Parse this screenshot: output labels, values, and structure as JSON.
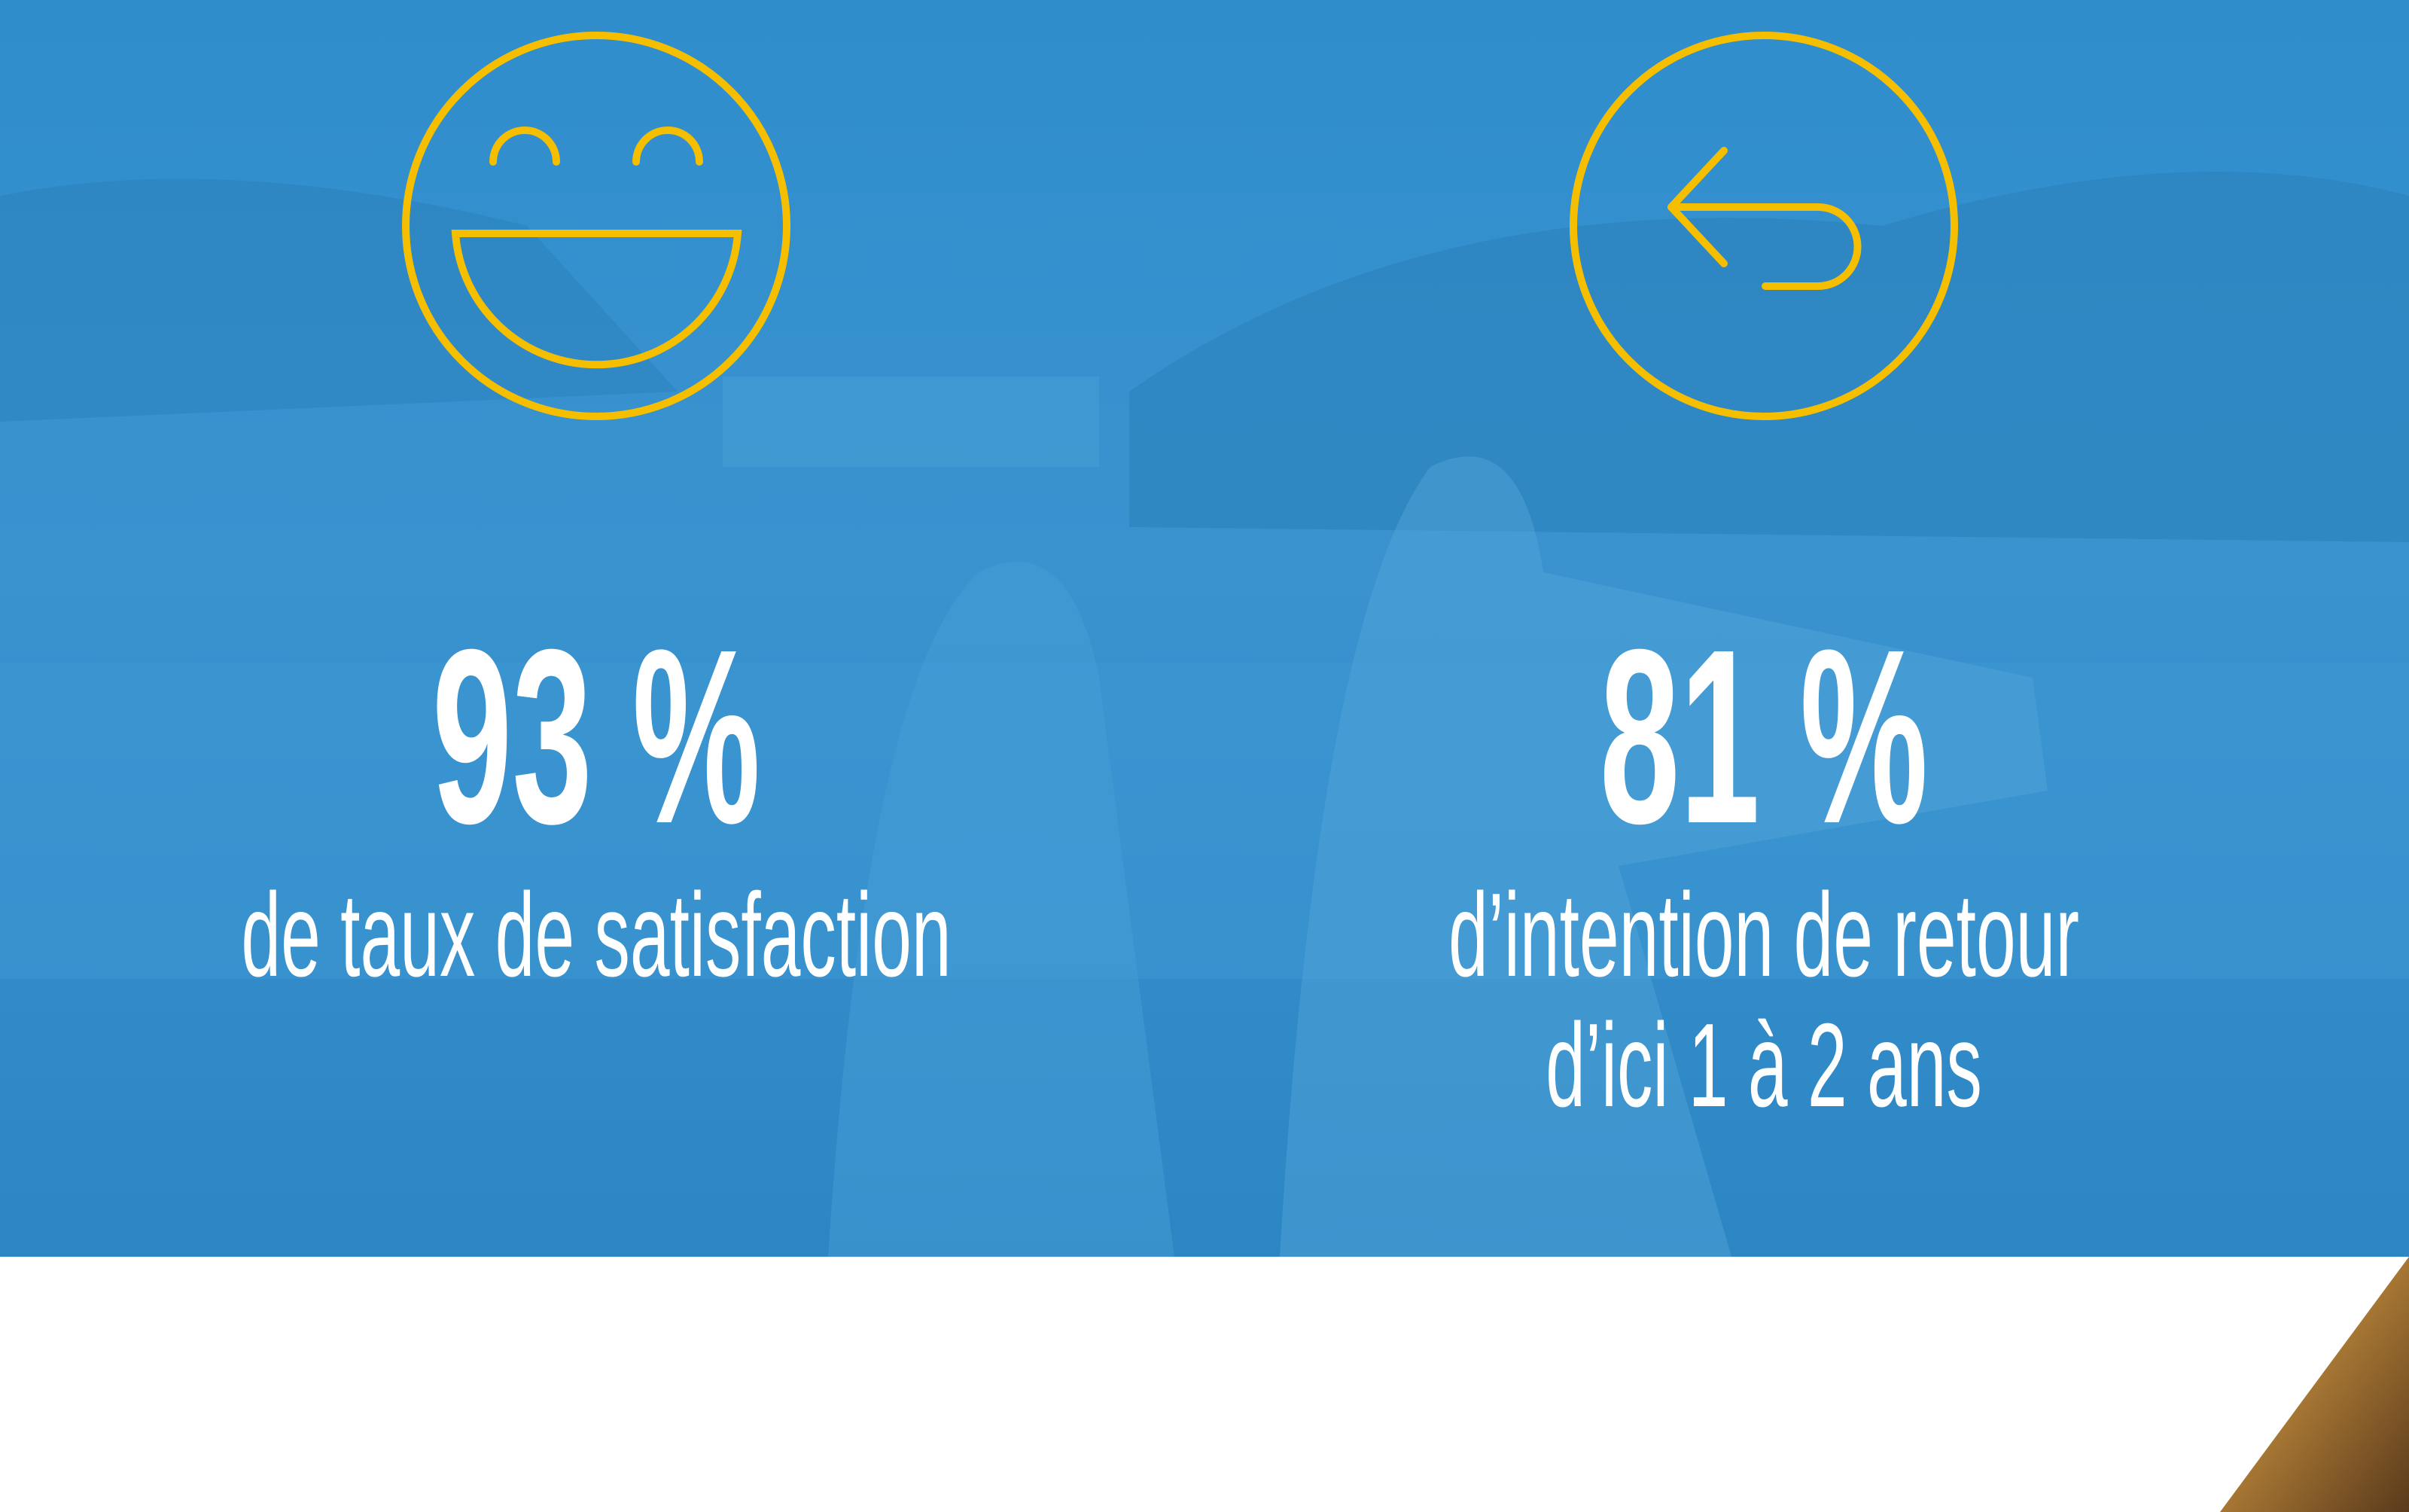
{
  "stats": [
    {
      "value": "93 %",
      "label": [
        "de taux de satisfaction"
      ]
    },
    {
      "value": "81 %",
      "label": [
        "d’intention de retour",
        "d’ici 1 à 2 ans"
      ]
    }
  ]
}
